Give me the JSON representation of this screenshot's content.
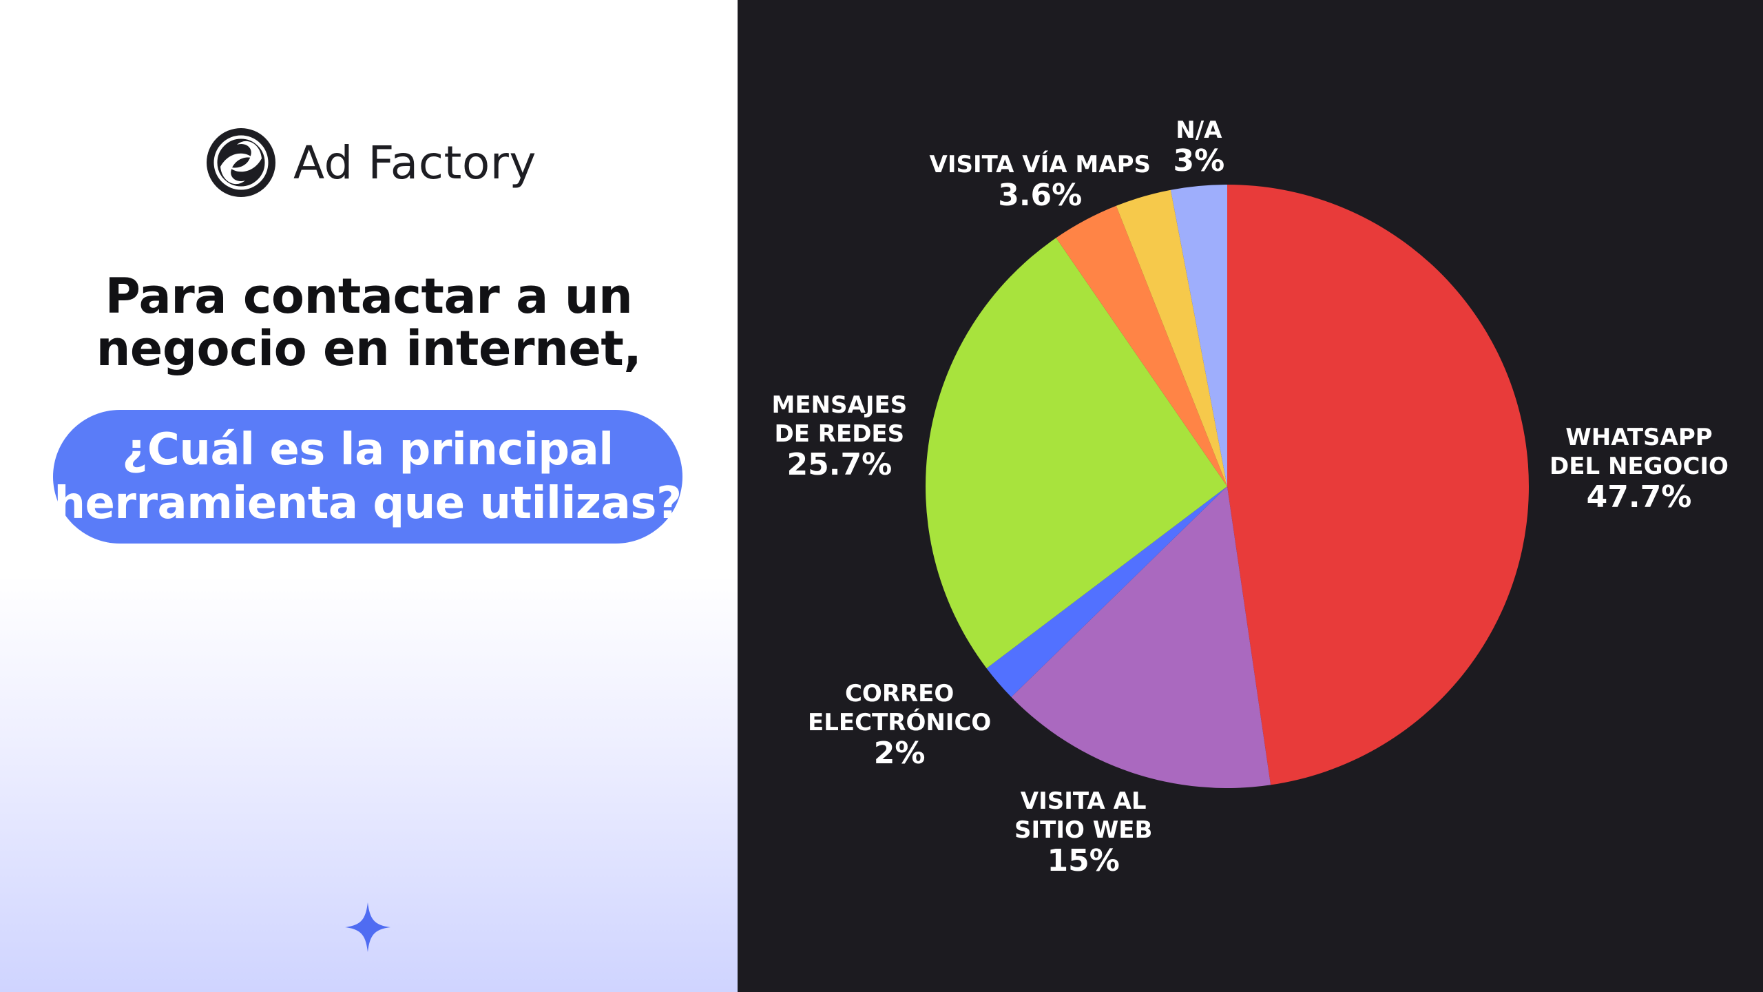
{
  "brand": {
    "name": "Ad Factory",
    "logo_icon": "ad-factory-logo-icon"
  },
  "headline": {
    "line1": "Para contactar a un",
    "line2": "negocio en internet,"
  },
  "question": {
    "line1": "¿Cuál es la principal",
    "line2": "herramienta que utilizas?"
  },
  "decor": {
    "icon": "sparkle-icon"
  },
  "colors": {
    "left_bg": "#ffffff",
    "left_gradient_bottom": "#cfd4ff",
    "right_bg": "#1c1b20",
    "pill": "#5a7cf8",
    "sparkle": "#4f6cf2"
  },
  "chart_data": {
    "type": "pie",
    "start": "top",
    "direction": "clockwise",
    "slices": [
      {
        "label_lines": [
          "WHATSAPP",
          "DEL NEGOCIO"
        ],
        "value": 47.7,
        "value_text": "47.7%",
        "color": "#e83b3a"
      },
      {
        "label_lines": [
          "VISITA AL",
          "SITIO WEB"
        ],
        "value": 15,
        "value_text": "15%",
        "color": "#aa69bf"
      },
      {
        "label_lines": [
          "CORREO",
          "ELECTRÓNICO"
        ],
        "value": 2,
        "value_text": "2%",
        "color": "#5271ff"
      },
      {
        "label_lines": [
          "MENSAJES",
          "DE REDES"
        ],
        "value": 25.7,
        "value_text": "25.7%",
        "color": "#a8e33d"
      },
      {
        "label_lines": [
          "VISITA VÍA MAPS"
        ],
        "value": 3.6,
        "value_text": "3.6%",
        "color": "#ff8446"
      },
      {
        "label_lines": [],
        "value": 3,
        "value_text": "",
        "color": "#f6c94b"
      },
      {
        "label_lines": [
          "N/A"
        ],
        "value": 3,
        "value_text": "3%",
        "color": "#9eaefc"
      }
    ]
  }
}
